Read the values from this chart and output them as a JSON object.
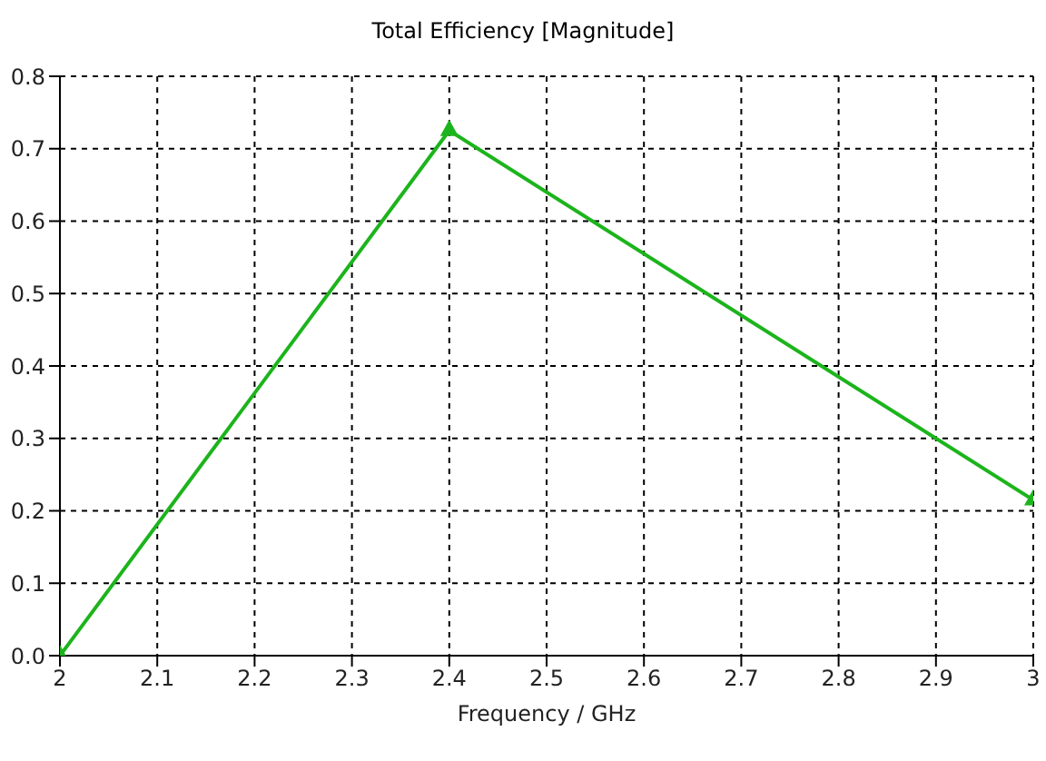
{
  "chart_data": {
    "type": "line",
    "title": "Total Efficiency [Magnitude]",
    "xlabel": "Frequency / GHz",
    "x": [
      2,
      2.4,
      3
    ],
    "series": [
      {
        "color": "#1cb41c",
        "values": [
          0.0,
          0.725,
          0.215
        ]
      }
    ],
    "xlim": [
      2,
      3
    ],
    "xticks": [
      2,
      2.1,
      2.2,
      2.3,
      2.4,
      2.5,
      2.6,
      2.7,
      2.8,
      2.9,
      3
    ],
    "ylim": [
      0,
      0.8
    ],
    "yticks": [
      {
        "value": 0,
        "label": "0.0"
      },
      0.1,
      0.2,
      0.3,
      0.4,
      0.5,
      0.6,
      0.7,
      {
        "value": 0.8,
        "label": "0.8"
      }
    ],
    "grid": true,
    "marker": "triangle",
    "line_style": "solid"
  }
}
